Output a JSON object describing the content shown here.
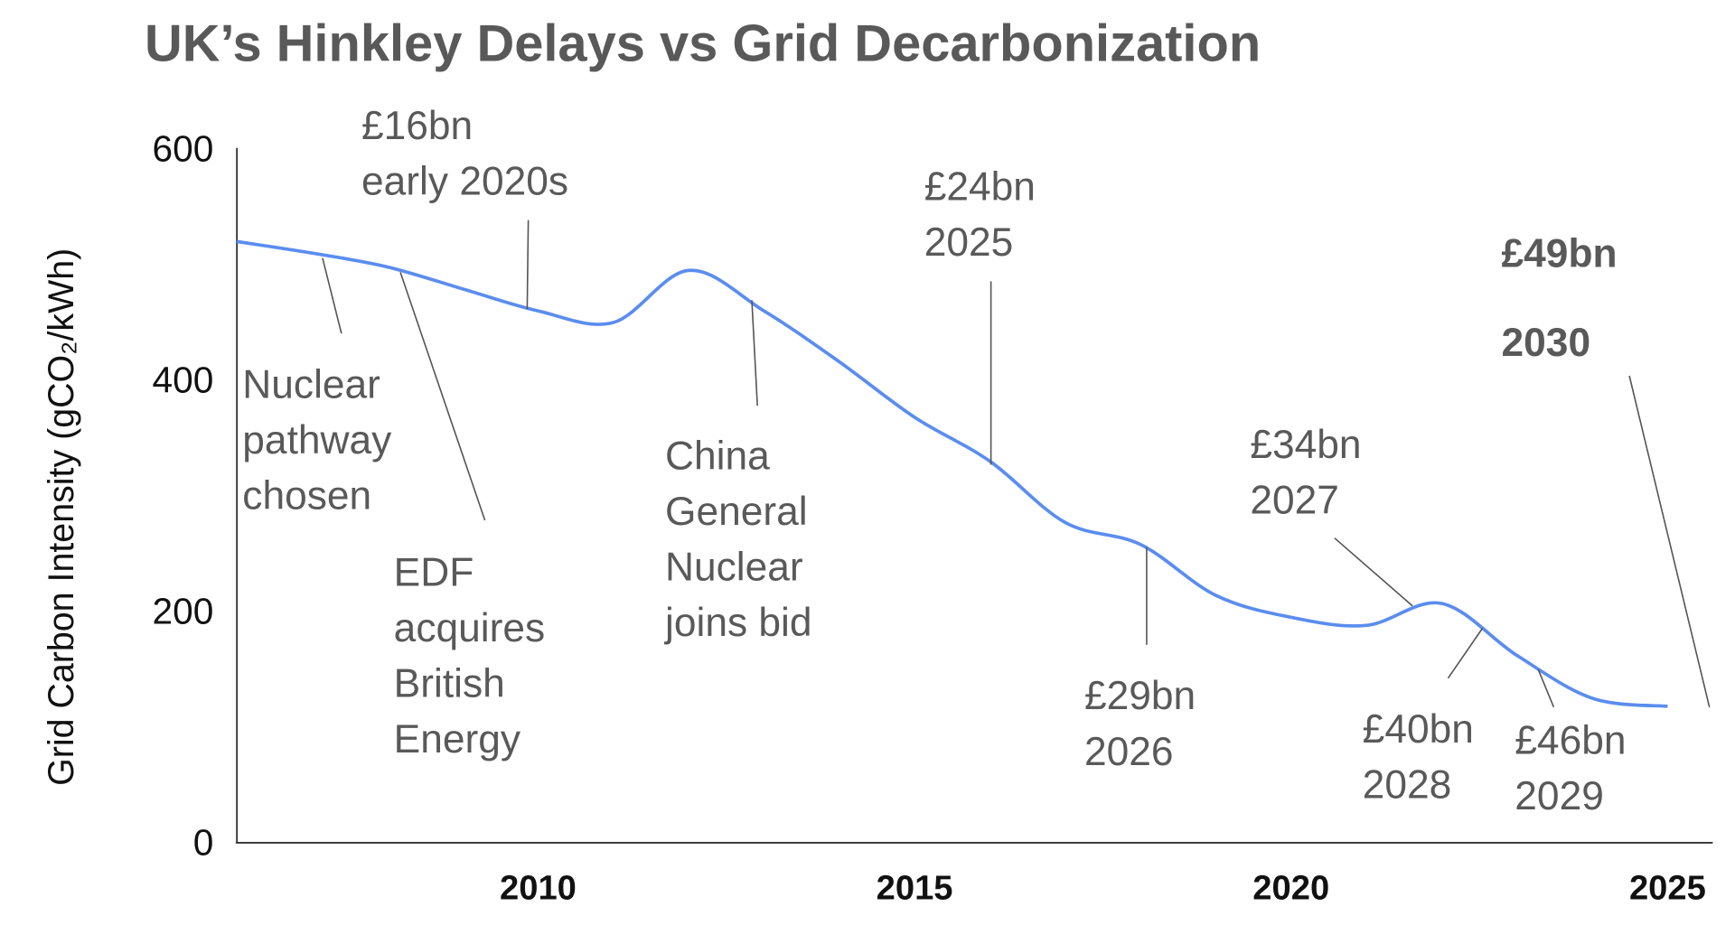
{
  "chart_data": {
    "type": "line",
    "title": "UK’s Hinkley Delays vs Grid Decarbonization",
    "y_label": "Grid Carbon Intensity (gCO₂/kWh)",
    "x": [
      2006,
      2007,
      2008,
      2009,
      2010,
      2011,
      2012,
      2013,
      2014,
      2015,
      2016,
      2017,
      2018,
      2019,
      2020,
      2021,
      2022,
      2023,
      2024,
      2025
    ],
    "series": [
      {
        "name": "Grid carbon intensity",
        "color": "#5b8def",
        "values": [
          519,
          509,
          497,
          478,
          459,
          449,
          494,
          459,
          415,
          367,
          329,
          276,
          257,
          213,
          194,
          187,
          206,
          161,
          124,
          117
        ]
      }
    ],
    "xlim": [
      2006,
      2025.6
    ],
    "xticks": [
      2010,
      2015,
      2020,
      2025
    ],
    "ylim": [
      0,
      600
    ],
    "yticks": [
      0,
      200,
      400,
      600
    ],
    "grid": false,
    "legend": false,
    "annotations": [
      {
        "lines": [
          "Nuclear",
          "pathway",
          "chosen"
        ]
      },
      {
        "lines": [
          "EDF",
          "acquires",
          "British",
          "Energy"
        ]
      },
      {
        "lines": [
          "£16bn",
          "early 2020s"
        ]
      },
      {
        "lines": [
          "China",
          "General",
          "Nuclear",
          "joins bid"
        ]
      },
      {
        "lines": [
          "£24bn",
          "2025"
        ]
      },
      {
        "lines": [
          "£29bn",
          "2026"
        ]
      },
      {
        "lines": [
          "£34bn",
          "2027"
        ]
      },
      {
        "lines": [
          "£40bn",
          "2028"
        ]
      },
      {
        "lines": [
          "£46bn",
          "2029"
        ]
      },
      {
        "lines": [
          "£49bn",
          "2030"
        ]
      }
    ]
  }
}
